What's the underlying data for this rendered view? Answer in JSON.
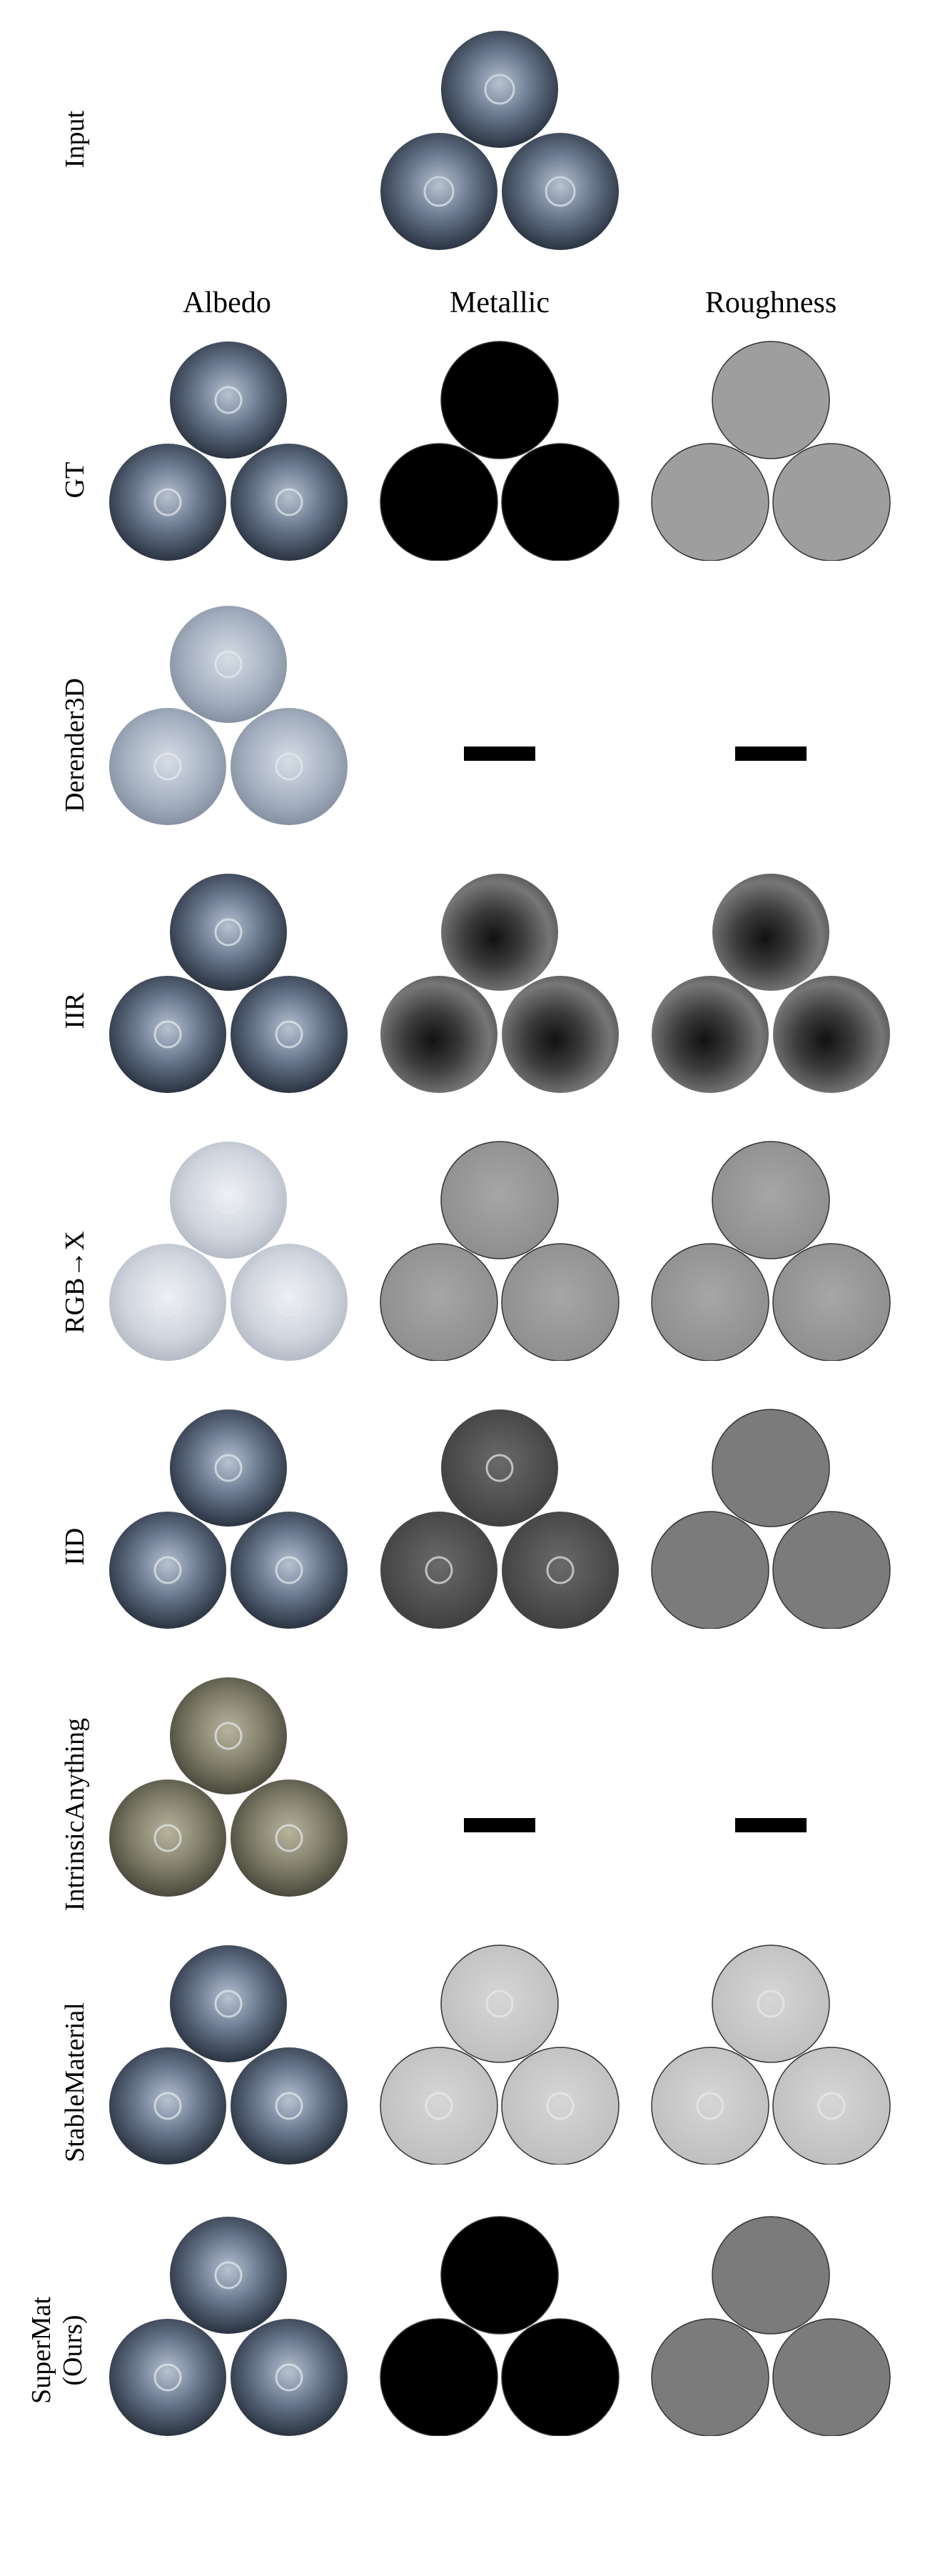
{
  "input_label": "Input",
  "columns": [
    "Albedo",
    "Metallic",
    "Roughness"
  ],
  "rows": [
    {
      "label": "GT",
      "albedo": "blue",
      "metallic": "black",
      "roughness": "grey",
      "roughness_color": "#9e9e9e"
    },
    {
      "label": "Derender3D",
      "albedo": "pale",
      "metallic": "n/a",
      "roughness": "n/a"
    },
    {
      "label": "IIR",
      "albedo": "blue",
      "metallic": "blotchy",
      "roughness": "blotchy"
    },
    {
      "label": "RGB→X",
      "albedo": "washed",
      "metallic": "grey",
      "roughness": "grey"
    },
    {
      "label": "IID",
      "albedo": "blue",
      "metallic": "dark-grey",
      "roughness": "flat-grey"
    },
    {
      "label": "IntrinsicAnything",
      "albedo": "olive",
      "metallic": "n/a",
      "roughness": "n/a"
    },
    {
      "label": "StableMaterial",
      "albedo": "blue",
      "metallic": "light-grey",
      "roughness": "light-grey"
    },
    {
      "label_line1": "SuperMat",
      "label_line2": "(Ours)",
      "albedo": "blue",
      "metallic": "black",
      "roughness": "flat-grey"
    }
  ],
  "colors": {
    "berry_dark": "#2e3440",
    "berry_mid": "#5d6b80",
    "berry_light": "#aab3c2",
    "bar": "#000000"
  }
}
